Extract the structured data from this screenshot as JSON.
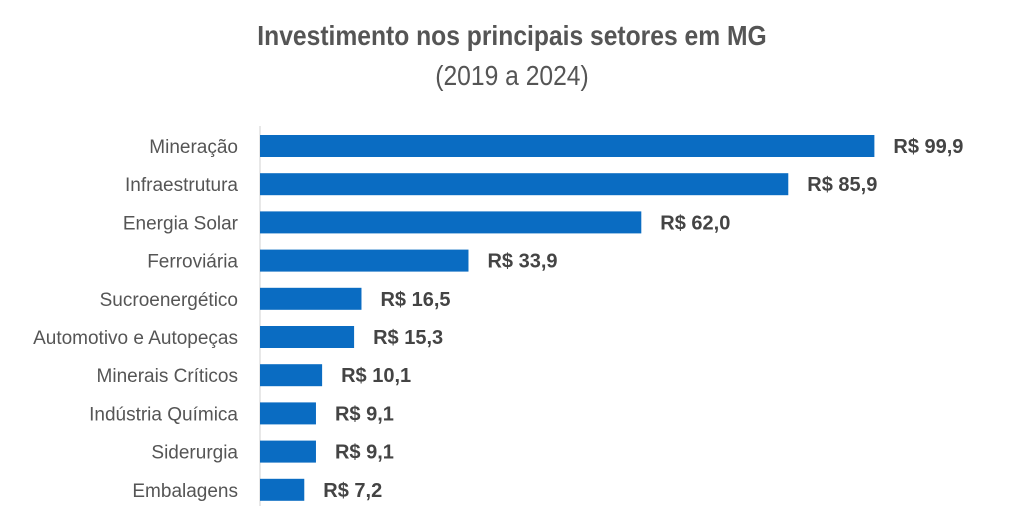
{
  "chart_data": {
    "type": "bar",
    "orientation": "horizontal",
    "title": "Investimento nos principais setores em MG",
    "subtitle": "(2019 a 2024)",
    "xlabel": "",
    "ylabel": "",
    "categories": [
      "Mineração",
      "Infraestrutura",
      "Energia Solar",
      "Ferroviária",
      "Sucroenergético",
      "Automotivo e Autopeças",
      "Minerais Críticos",
      "Indústria Química",
      "Siderurgia",
      "Embalagens"
    ],
    "values": [
      99.9,
      85.9,
      62.0,
      33.9,
      16.5,
      15.3,
      10.1,
      9.1,
      9.1,
      7.2
    ],
    "data_labels": [
      "R$ 99,9",
      "R$ 85,9",
      "R$ 62,0",
      "R$ 33,9",
      "R$ 16,5",
      "R$ 15,3",
      "R$ 10,1",
      "R$ 9,1",
      "R$ 9,1",
      "R$ 7,2"
    ],
    "xlim": [
      0,
      100
    ],
    "grid": false,
    "legend": "none",
    "bar_color": "#0a6cc2",
    "axis_color": "#d0d0d0"
  }
}
